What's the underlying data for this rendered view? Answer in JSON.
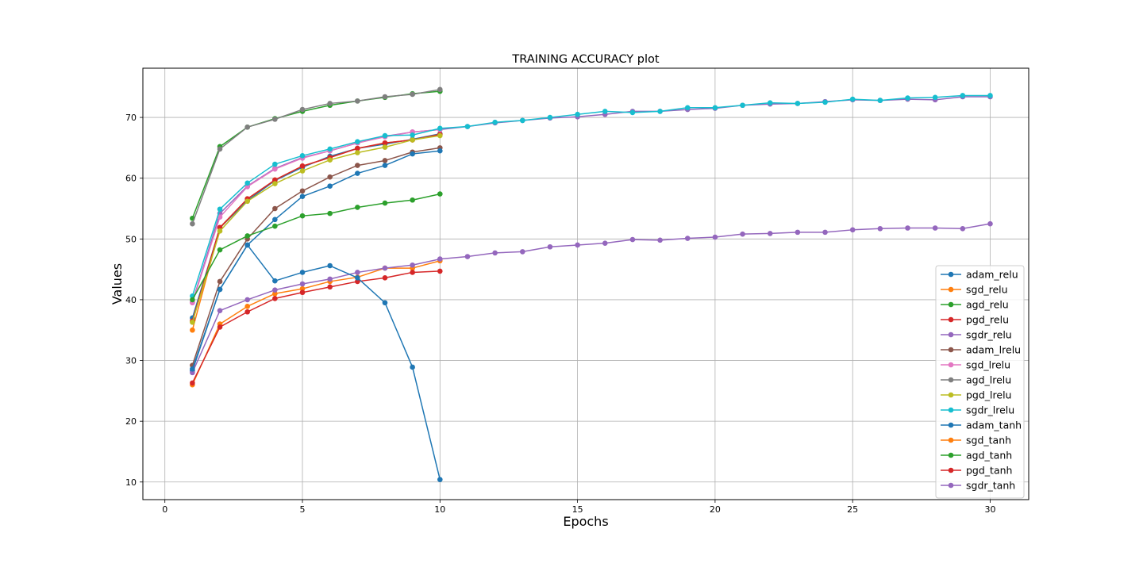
{
  "chart_data": {
    "type": "line",
    "title": "TRAINING ACCURACY plot",
    "xlabel": "Epochs",
    "ylabel": "Values",
    "xlim": [
      -0.8,
      31.4
    ],
    "ylim": [
      7.1,
      78.1
    ],
    "xticks": [
      0,
      5,
      10,
      15,
      20,
      25,
      30
    ],
    "yticks": [
      10,
      20,
      30,
      40,
      50,
      60,
      70
    ],
    "grid": true,
    "legend_position": "lower-right",
    "series": [
      {
        "name": "adam_relu",
        "color": "#1f77b4",
        "x": [
          1,
          2,
          3,
          4,
          5,
          6,
          7,
          8,
          9,
          10
        ],
        "values": [
          37.0,
          51.8,
          56.3,
          59.6,
          61.8,
          63.6,
          64.9,
          65.6,
          66.4,
          67.3
        ]
      },
      {
        "name": "sgd_relu",
        "color": "#ff7f0e",
        "x": [
          1,
          2,
          3,
          4,
          5,
          6,
          7,
          8,
          9,
          10
        ],
        "values": [
          35.0,
          51.8,
          56.6,
          59.7,
          62.0,
          63.4,
          64.9,
          65.8,
          66.3,
          67.2
        ]
      },
      {
        "name": "agd_relu",
        "color": "#2ca02c",
        "x": [
          1,
          2,
          3,
          4,
          5,
          6,
          7,
          8,
          9,
          10
        ],
        "values": [
          53.4,
          65.2,
          68.4,
          69.8,
          71.0,
          72.0,
          72.7,
          73.3,
          73.9,
          74.3
        ]
      },
      {
        "name": "pgd_relu",
        "color": "#d62728",
        "x": [
          1,
          2,
          3,
          4,
          5,
          6,
          7,
          8,
          9,
          10
        ],
        "values": [
          36.5,
          51.9,
          56.6,
          59.7,
          62.0,
          63.4,
          64.9,
          65.8,
          66.3,
          67.2
        ]
      },
      {
        "name": "sgdr_relu",
        "color": "#9467bd",
        "x": [
          1,
          2,
          3,
          4,
          5,
          6,
          7,
          8,
          9,
          10,
          11,
          12,
          13,
          14,
          15,
          16,
          17,
          18,
          19,
          20,
          21,
          22,
          23,
          24,
          25,
          26,
          27,
          28,
          29,
          30
        ],
        "values": [
          39.6,
          54.2,
          58.7,
          61.6,
          63.4,
          64.5,
          65.8,
          66.9,
          67.6,
          68.0,
          68.5,
          69.1,
          69.5,
          69.9,
          70.1,
          70.5,
          71.0,
          71.0,
          71.3,
          71.5,
          72.0,
          72.2,
          72.3,
          72.6,
          72.9,
          72.8,
          73.0,
          72.9,
          73.4,
          73.4
        ]
      },
      {
        "name": "adam_lrelu",
        "color": "#8c564b",
        "x": [
          1,
          2,
          3,
          4,
          5,
          6,
          7,
          8,
          9,
          10
        ],
        "values": [
          29.2,
          43.0,
          50.0,
          55.0,
          57.9,
          60.2,
          62.1,
          62.9,
          64.3,
          65.0
        ]
      },
      {
        "name": "sgd_lrelu",
        "color": "#e377c2",
        "x": [
          1,
          2,
          3,
          4,
          5,
          6,
          7,
          8,
          9,
          10
        ],
        "values": [
          39.5,
          53.6,
          58.6,
          61.5,
          63.3,
          64.5,
          65.8,
          66.8,
          67.6,
          68.0
        ]
      },
      {
        "name": "agd_lrelu",
        "color": "#7f7f7f",
        "x": [
          1,
          2,
          3,
          4,
          5,
          6,
          7,
          8,
          9,
          10
        ],
        "values": [
          52.5,
          64.8,
          68.4,
          69.7,
          71.3,
          72.3,
          72.7,
          73.4,
          73.8,
          74.6
        ]
      },
      {
        "name": "pgd_lrelu",
        "color": "#bcbd22",
        "x": [
          1,
          2,
          3,
          4,
          5,
          6,
          7,
          8,
          9,
          10
        ],
        "values": [
          36.3,
          51.3,
          56.2,
          59.1,
          61.2,
          63.0,
          64.2,
          65.1,
          66.3,
          67.0
        ]
      },
      {
        "name": "sgdr_lrelu",
        "color": "#17becf",
        "x": [
          1,
          2,
          3,
          4,
          5,
          6,
          7,
          8,
          9,
          10,
          11,
          12,
          13,
          14,
          15,
          16,
          17,
          18,
          19,
          20,
          21,
          22,
          23,
          24,
          25,
          26,
          27,
          28,
          29,
          30
        ],
        "values": [
          40.6,
          54.9,
          59.2,
          62.3,
          63.7,
          64.8,
          66.0,
          67.0,
          67.1,
          68.2,
          68.5,
          69.2,
          69.5,
          70.0,
          70.5,
          71.0,
          70.8,
          71.0,
          71.6,
          71.6,
          72.0,
          72.4,
          72.3,
          72.5,
          73.0,
          72.8,
          73.2,
          73.3,
          73.6,
          73.6
        ]
      },
      {
        "name": "adam_tanh",
        "color": "#1f77b4",
        "x": [
          1,
          2,
          3,
          4,
          5,
          6,
          7,
          8,
          9,
          10
        ],
        "values": [
          28.3,
          41.7,
          49.0,
          53.2,
          57.0,
          58.7,
          60.8,
          62.1,
          64.0,
          64.5
        ]
      },
      {
        "name": "sgd_tanh",
        "color": "#ff7f0e",
        "x": [
          1,
          2,
          3,
          4,
          5,
          6,
          7,
          8,
          9,
          10
        ],
        "values": [
          26.0,
          36.0,
          38.9,
          41.0,
          41.8,
          43.0,
          43.7,
          45.2,
          45.2,
          46.4
        ]
      },
      {
        "name": "agd_tanh",
        "color": "#2ca02c",
        "x": [
          1,
          2,
          3,
          4,
          5,
          6,
          7,
          8,
          9,
          10
        ],
        "values": [
          40.0,
          48.2,
          50.5,
          52.1,
          53.8,
          54.2,
          55.2,
          55.9,
          56.4,
          57.4
        ]
      },
      {
        "name": "pgd_tanh",
        "color": "#d62728",
        "x": [
          1,
          2,
          3,
          4,
          5,
          6,
          7,
          8,
          9,
          10
        ],
        "values": [
          26.3,
          35.5,
          38.0,
          40.2,
          41.2,
          42.1,
          43.0,
          43.6,
          44.5,
          44.7
        ]
      },
      {
        "name": "sgdr_tanh",
        "color": "#9467bd",
        "x": [
          1,
          2,
          3,
          4,
          5,
          6,
          7,
          8,
          9,
          10,
          11,
          12,
          13,
          14,
          15,
          16,
          17,
          18,
          19,
          20,
          21,
          22,
          23,
          24,
          25,
          26,
          27,
          28,
          29,
          30
        ],
        "values": [
          28.0,
          38.2,
          40.0,
          41.6,
          42.6,
          43.4,
          44.5,
          45.2,
          45.7,
          46.7,
          47.1,
          47.7,
          47.9,
          48.7,
          49.0,
          49.3,
          49.9,
          49.8,
          50.1,
          50.3,
          50.8,
          50.9,
          51.1,
          51.1,
          51.5,
          51.7,
          51.8,
          51.8,
          51.7,
          52.5
        ]
      },
      {
        "name": "adam_tanh",
        "color": "#1f77b4",
        "x": [
          1,
          2,
          3,
          4,
          5,
          6,
          7,
          8,
          9,
          10
        ],
        "values": [
          28.6,
          41.7,
          49.0,
          43.1,
          44.5,
          45.6,
          43.6,
          39.5,
          28.9,
          10.4
        ]
      }
    ]
  }
}
